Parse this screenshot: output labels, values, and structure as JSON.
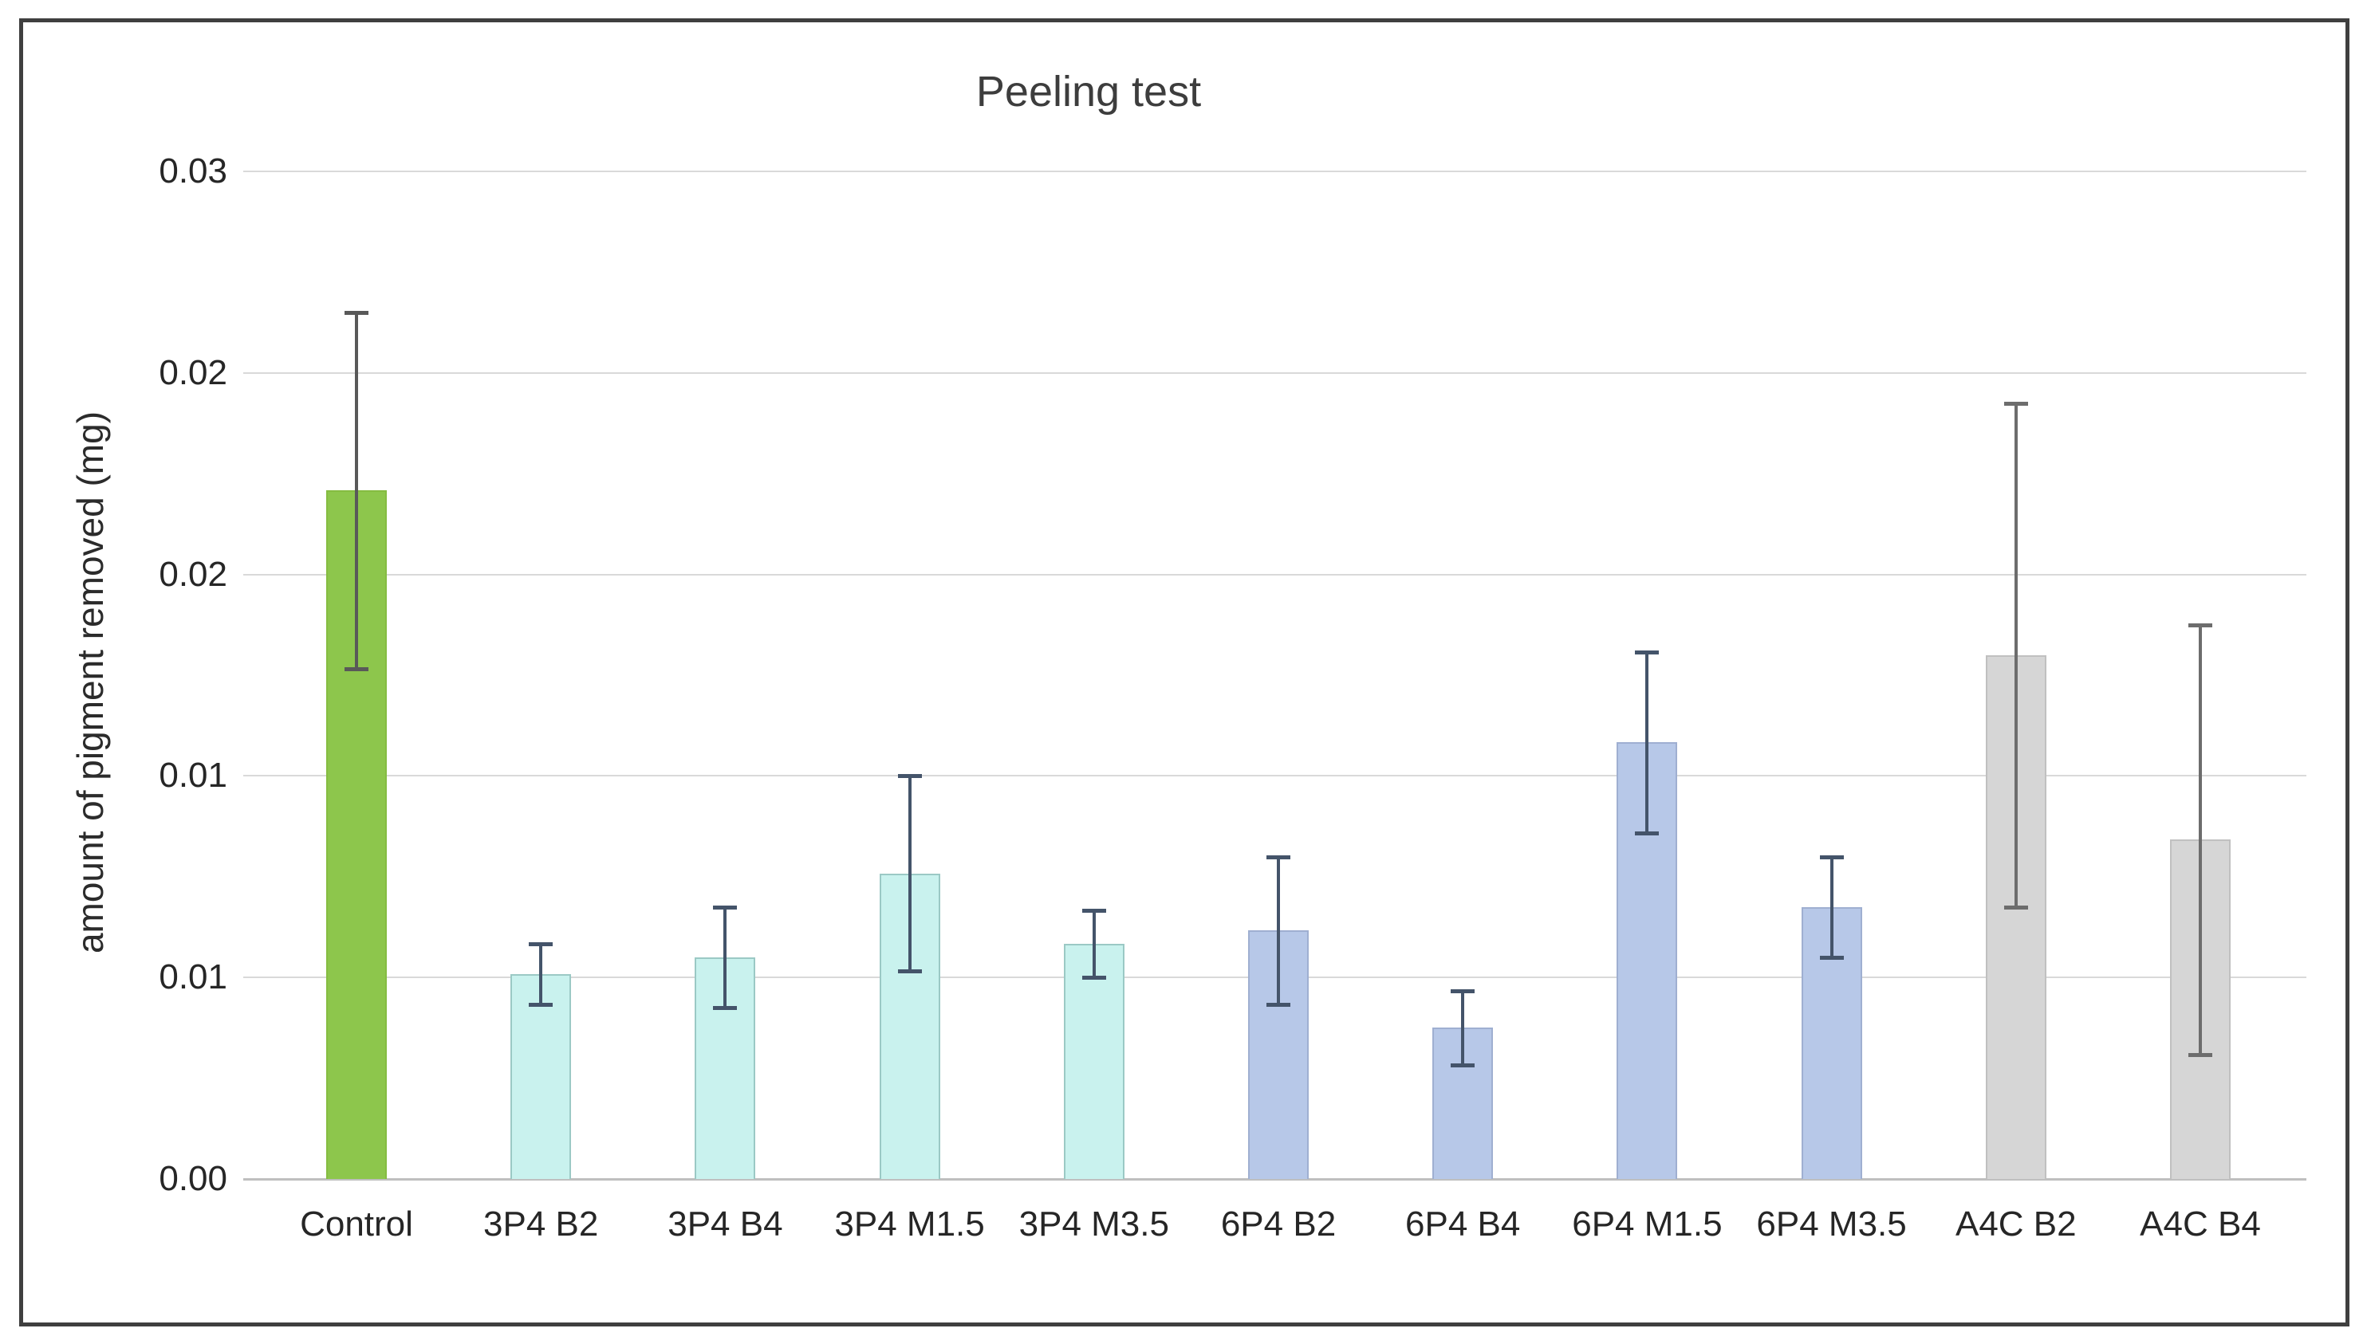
{
  "page": {
    "background_color": "#ffffff",
    "frame_border_color": "#3f3f3f"
  },
  "chart_data": {
    "type": "bar",
    "title": "Peeling test",
    "xlabel": "",
    "ylabel": "amount of pigment removed (mg)",
    "ylim": [
      0,
      0.03
    ],
    "ytick_interval": 0.006,
    "grid": true,
    "legend_position": "none",
    "yticks": {
      "values": [
        0.03,
        0.024,
        0.018,
        0.012,
        0.006,
        0
      ],
      "labels": [
        "0.03",
        "0.02",
        "0.02",
        "0.01",
        "0.01",
        "0.00"
      ]
    },
    "categories": [
      "Control",
      "3P4 B2",
      "3P4 B4",
      "3P4 M1.5",
      "3P4 M3.5",
      "6P4 B2",
      "6P4 B4",
      "6P4 M1.5",
      "6P4 M3.5",
      "A4C B2",
      "A4C B4"
    ],
    "series": [
      {
        "name": "amount of pigment removed",
        "values": [
          0.0205,
          0.0061,
          0.0066,
          0.0091,
          0.007,
          0.0074,
          0.0045,
          0.013,
          0.0081,
          0.0156,
          0.0101
        ],
        "error_bars": [
          0.0053,
          0.0009,
          0.0015,
          0.0029,
          0.001,
          0.0022,
          0.0011,
          0.0027,
          0.0015,
          0.0075,
          0.0064
        ]
      }
    ],
    "groups": [
      "Control",
      "3P4",
      "3P4",
      "3P4",
      "3P4",
      "6P4",
      "6P4",
      "6P4",
      "6P4",
      "A4C",
      "A4C"
    ],
    "bar_fill_colors": [
      "#8dc64c",
      "#c9f2ee",
      "#c9f2ee",
      "#c9f2ee",
      "#c9f2ee",
      "#b7c8e8",
      "#b7c8e8",
      "#b7c8e8",
      "#b7c8e8",
      "#d6d6d6",
      "#d6d6d6"
    ],
    "bar_border_colors": [
      "#85bc41",
      "#9bc9c5",
      "#9bc9c5",
      "#9bc9c5",
      "#9bc9c5",
      "#9fafd1",
      "#9fafd1",
      "#9fafd1",
      "#9fafd1",
      "#c0c0c0",
      "#c0c0c0"
    ],
    "error_bar_colors": [
      "#595959",
      "#44546a",
      "#44546a",
      "#44546a",
      "#44546a",
      "#44546a",
      "#44546a",
      "#44546a",
      "#44546a",
      "#6d6d6d",
      "#6d6d6d"
    ],
    "gridline_color": "#d9d9d9",
    "axis_line_color": "#bfbfbf"
  }
}
